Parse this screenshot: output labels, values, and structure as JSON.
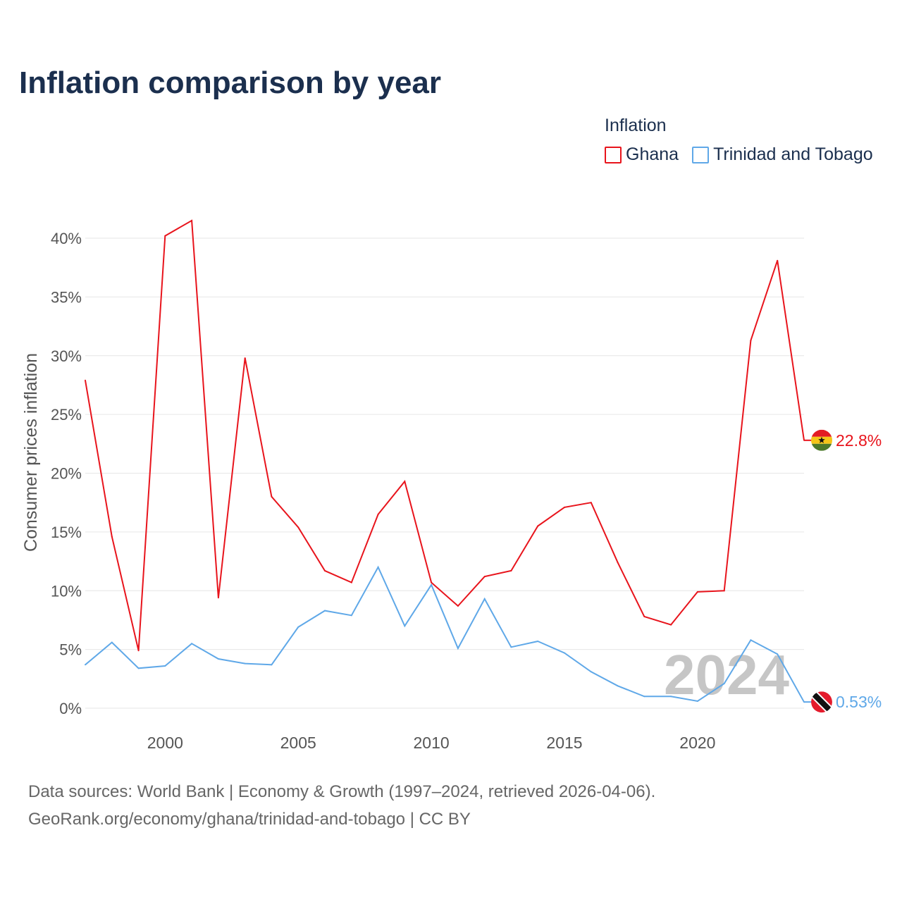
{
  "colors": {
    "grid": "#e6e6e6",
    "title": "#1b2f4e",
    "axis_text": "#555555",
    "watermark": "#c6c6c6",
    "source_text": "#666666"
  },
  "source": {
    "line1": "Data sources: World Bank | Economy & Growth (1997–2024, retrieved 2026-04-06).",
    "line2": "GeoRank.org/economy/ghana/trinidad-and-tobago | CC BY"
  },
  "chart_data": {
    "type": "line",
    "title": "Inflation comparison by year",
    "legend_title": "Inflation",
    "legend_position": "top-right",
    "xlabel": "",
    "ylabel": "Consumer prices inflation",
    "watermark_year": "2024",
    "grid": true,
    "xlim": [
      1997,
      2024
    ],
    "ylim": [
      0,
      40
    ],
    "xticks": [
      2000,
      2005,
      2010,
      2015,
      2020
    ],
    "xtick_labels": [
      "2000",
      "2005",
      "2010",
      "2015",
      "2020"
    ],
    "yticks": [
      0,
      5,
      10,
      15,
      20,
      25,
      30,
      35,
      40
    ],
    "ytick_labels": [
      "0%",
      "5%",
      "10%",
      "15%",
      "20%",
      "25%",
      "30%",
      "35%",
      "40%"
    ],
    "x": [
      1997,
      1998,
      1999,
      2000,
      2001,
      2002,
      2003,
      2004,
      2005,
      2006,
      2007,
      2008,
      2009,
      2010,
      2011,
      2012,
      2013,
      2014,
      2015,
      2016,
      2017,
      2018,
      2019,
      2020,
      2021,
      2022,
      2023,
      2024
    ],
    "series": [
      {
        "name": "Ghana",
        "color": "#e8141c",
        "flag_icon": "ghana-flag-icon",
        "end_label": "22.8%",
        "values": [
          27.9,
          14.6,
          4.9,
          40.2,
          41.5,
          9.4,
          29.8,
          18.0,
          15.4,
          11.7,
          10.7,
          16.5,
          19.3,
          10.7,
          8.7,
          11.2,
          11.7,
          15.5,
          17.1,
          17.5,
          12.4,
          7.8,
          7.1,
          9.9,
          10.0,
          31.3,
          38.1,
          22.8
        ]
      },
      {
        "name": "Trinidad and Tobago",
        "color": "#5fa8e8",
        "flag_icon": "trinidad-and-tobago-flag-icon",
        "end_label": "0.53%",
        "values": [
          3.7,
          5.6,
          3.4,
          3.6,
          5.5,
          4.2,
          3.8,
          3.7,
          6.9,
          8.3,
          7.9,
          12.0,
          7.0,
          10.5,
          5.1,
          9.3,
          5.2,
          5.7,
          4.7,
          3.1,
          1.9,
          1.0,
          1.0,
          0.6,
          2.1,
          5.8,
          4.6,
          0.53
        ]
      }
    ]
  }
}
